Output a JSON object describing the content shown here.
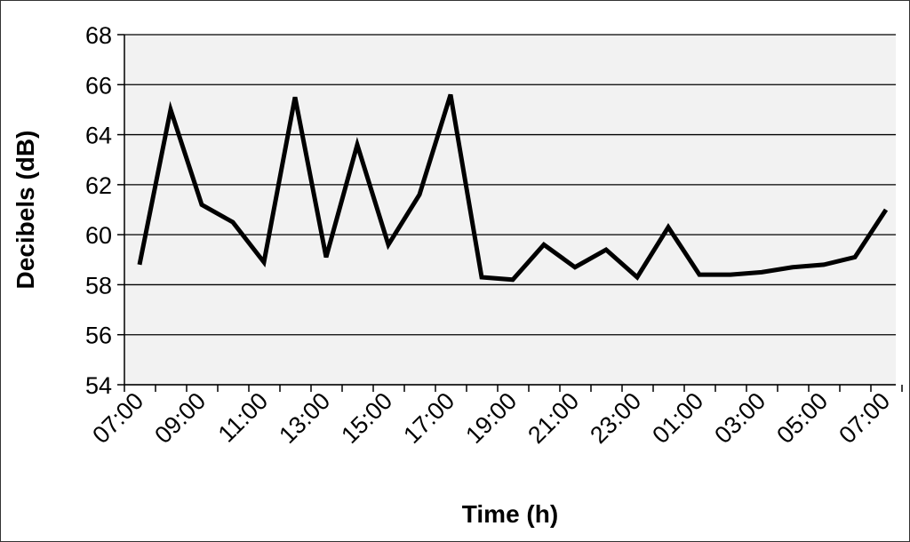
{
  "chart_data": {
    "type": "line",
    "xlabel": "Time (h)",
    "ylabel": "Decibels (dB)",
    "ylim": [
      54,
      68
    ],
    "y_ticks": [
      "54",
      "56",
      "58",
      "60",
      "62",
      "64",
      "66",
      "68"
    ],
    "x_tick_labels": [
      "07:00",
      "09:00",
      "11:00",
      "13:00",
      "15:00",
      "17:00",
      "19:00",
      "21:00",
      "23:00",
      "01:00",
      "03:00",
      "05:00",
      "07:00"
    ],
    "grid": "horizontal",
    "legend": "none",
    "colors": {
      "line": "#000000",
      "plot_background": "#f2f2f2",
      "grid": "#000000"
    },
    "series": [
      {
        "x": [
          "07:00",
          "08:00",
          "09:00",
          "10:00",
          "11:00",
          "12:00",
          "13:00",
          "14:00",
          "15:00",
          "16:00",
          "17:00",
          "18:00",
          "19:00",
          "20:00",
          "21:00",
          "22:00",
          "23:00",
          "00:00",
          "01:00",
          "02:00",
          "03:00",
          "04:00",
          "05:00",
          "06:00",
          "07:00"
        ],
        "values": [
          58.8,
          65.0,
          61.2,
          60.5,
          58.9,
          65.5,
          59.1,
          63.6,
          59.6,
          61.6,
          65.6,
          58.3,
          58.2,
          59.6,
          58.7,
          59.4,
          58.3,
          60.3,
          58.4,
          58.4,
          58.5,
          58.7,
          58.8,
          59.1,
          61.0
        ]
      }
    ]
  }
}
